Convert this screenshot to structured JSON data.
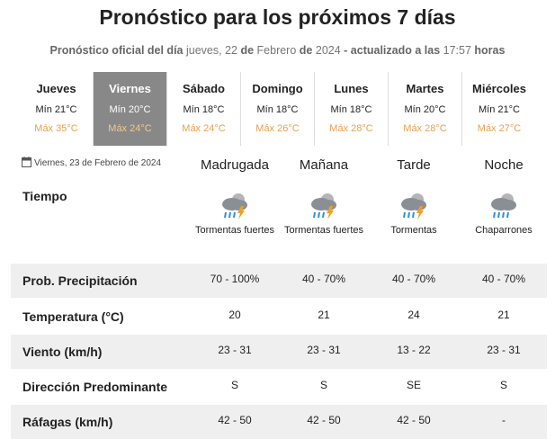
{
  "header": {
    "title": "Pronóstico para los próximos 7 días",
    "subtitle": [
      {
        "text": "Pronóstico oficial del día",
        "bold": true
      },
      {
        "text": "jueves, 22",
        "bold": false
      },
      {
        "text": "de",
        "bold": true
      },
      {
        "text": "Febrero",
        "bold": false
      },
      {
        "text": "de",
        "bold": true
      },
      {
        "text": "2024",
        "bold": false
      },
      {
        "text": "- actualizado a las",
        "bold": true
      },
      {
        "text": "17:57",
        "bold": false
      },
      {
        "text": "horas",
        "bold": true
      }
    ]
  },
  "days": {
    "selected": 1,
    "items": [
      {
        "name": "Jueves",
        "min": "Mín 21°C",
        "max": "Máx 35°C"
      },
      {
        "name": "Viernes",
        "min": "Mín 20°C",
        "max": "Máx 24°C"
      },
      {
        "name": "Sábado",
        "min": "Mín 18°C",
        "max": "Máx 24°C"
      },
      {
        "name": "Domingo",
        "min": "Mín 18°C",
        "max": "Máx 26°C"
      },
      {
        "name": "Lunes",
        "min": "Mín 18°C",
        "max": "Máx 28°C"
      },
      {
        "name": "Martes",
        "min": "Mín 20°C",
        "max": "Máx 28°C"
      },
      {
        "name": "Miércoles",
        "min": "Mín 21°C",
        "max": "Máx 27°C"
      }
    ]
  },
  "forecast": {
    "date": "Viernes, 23 de Febrero de 2024",
    "periods": [
      "Madrugada",
      "Mañana",
      "Tarde",
      "Noche"
    ],
    "weather": {
      "label": "Tiempo",
      "descriptions": [
        "Tormentas fuertes",
        "Tormentas fuertes",
        "Tormentas",
        "Chaparrones"
      ]
    },
    "rows": [
      {
        "label": "Prob. Precipitación",
        "values": [
          "70 - 100%",
          "40 - 70%",
          "40 - 70%",
          "40 - 70%"
        ]
      },
      {
        "label": "Temperatura (°C)",
        "values": [
          20,
          21,
          24,
          21
        ]
      },
      {
        "label": "Viento (km/h)",
        "values": [
          "23 - 31",
          "23 - 31",
          "13 - 22",
          "23 - 31"
        ]
      },
      {
        "label": "Dirección Predominante",
        "values": [
          "S",
          "S",
          "SE",
          "S"
        ]
      },
      {
        "label": "Ráfagas (km/h)",
        "values": [
          "42 - 50",
          "42 - 50",
          "42 - 50",
          "-"
        ]
      }
    ]
  }
}
